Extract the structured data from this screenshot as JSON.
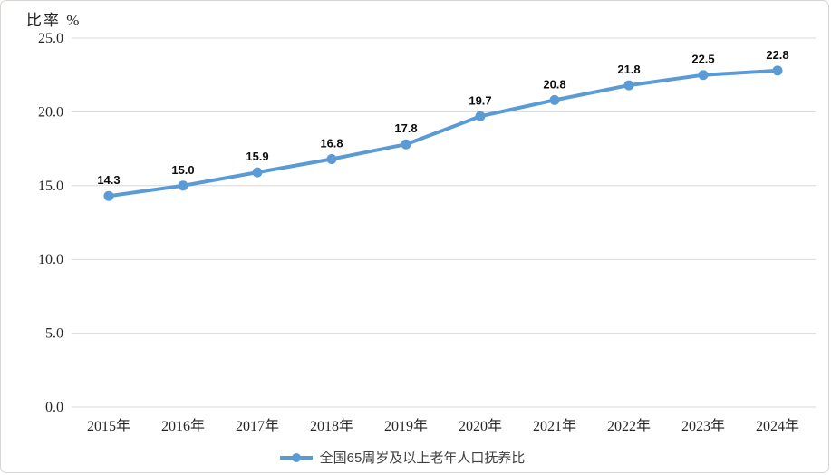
{
  "chart_data": {
    "type": "line",
    "title": "比率 %",
    "categories": [
      "2015年",
      "2016年",
      "2017年",
      "2018年",
      "2019年",
      "2020年",
      "2021年",
      "2022年",
      "2023年",
      "2024年"
    ],
    "series": [
      {
        "name": "全国65周岁及以上老年人口抚养比",
        "values": [
          14.3,
          15.0,
          15.9,
          16.8,
          17.8,
          19.7,
          20.8,
          21.8,
          22.5,
          22.8
        ],
        "data_labels": [
          "14.3",
          "15.0",
          "15.9",
          "16.8",
          "17.8",
          "19.7",
          "20.8",
          "21.8",
          "22.5",
          "22.8"
        ],
        "color": "#5b9bd5"
      }
    ],
    "xlabel": "",
    "ylabel": "比率 %",
    "ylim": [
      0,
      25
    ],
    "ytick_step": 5,
    "ytick_labels": [
      "0.0",
      "5.0",
      "10.0",
      "15.0",
      "20.0",
      "25.0"
    ],
    "grid": true,
    "legend_position": "bottom"
  },
  "colors": {
    "line": "#5b9bd5",
    "gridline": "#d9d9d9",
    "axis_text": "#262626",
    "data_label_text": "#0d0d0d",
    "frame_border": "#d8d4d2"
  }
}
